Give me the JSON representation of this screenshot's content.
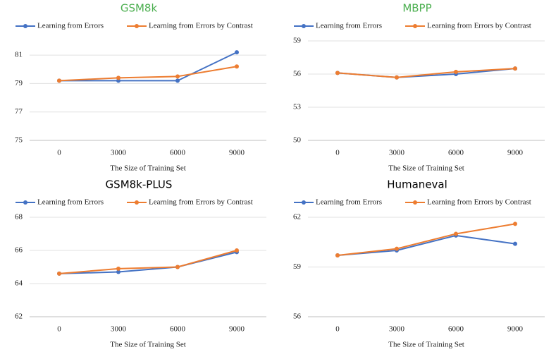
{
  "chart_data": [
    {
      "type": "line",
      "title": "GSM8k",
      "title_color": "#4caf50",
      "x_label": "The Size of Training Set",
      "categories": [
        "0",
        "3000",
        "6000",
        "9000"
      ],
      "series": [
        {
          "name": "Learning from Errors",
          "color": "#4472c4",
          "values": [
            79.2,
            79.2,
            79.2,
            81.2
          ]
        },
        {
          "name": "Learning from Errors by Contrast",
          "color": "#ed7d31",
          "values": [
            79.2,
            79.4,
            79.5,
            80.2
          ]
        }
      ],
      "ylim": [
        75,
        82
      ],
      "yticks": [
        75,
        77,
        79,
        81
      ],
      "grid": true
    },
    {
      "type": "line",
      "title": "MBPP",
      "title_color": "#4caf50",
      "x_label": "The Size of Training Set",
      "categories": [
        "0",
        "3000",
        "6000",
        "9000"
      ],
      "series": [
        {
          "name": "Learning from Errors",
          "color": "#4472c4",
          "values": [
            56.1,
            55.7,
            56.0,
            56.5
          ]
        },
        {
          "name": "Learning from Errors by Contrast",
          "color": "#ed7d31",
          "values": [
            56.1,
            55.7,
            56.2,
            56.5
          ]
        }
      ],
      "ylim": [
        50,
        59
      ],
      "yticks": [
        50,
        53,
        56,
        59
      ],
      "grid": true
    },
    {
      "type": "line",
      "title": "GSM8k-PLUS",
      "title_color": "#000000",
      "x_label": "The Size of Training Set",
      "categories": [
        "0",
        "3000",
        "6000",
        "9000"
      ],
      "series": [
        {
          "name": "Learning from Errors",
          "color": "#4472c4",
          "values": [
            64.6,
            64.7,
            65.0,
            65.9
          ]
        },
        {
          "name": "Learning from Errors by Contrast",
          "color": "#ed7d31",
          "values": [
            64.6,
            64.9,
            65.0,
            66.0
          ]
        }
      ],
      "ylim": [
        62,
        68
      ],
      "yticks": [
        62,
        64,
        66,
        68
      ],
      "grid": true
    },
    {
      "type": "line",
      "title": "Humaneval",
      "title_color": "#000000",
      "x_label": "The Size of Training Set",
      "categories": [
        "0",
        "3000",
        "6000",
        "9000"
      ],
      "series": [
        {
          "name": "Learning from Errors",
          "color": "#4472c4",
          "values": [
            59.7,
            60.0,
            60.9,
            60.4
          ]
        },
        {
          "name": "Learning from Errors by Contrast",
          "color": "#ed7d31",
          "values": [
            59.7,
            60.1,
            61.0,
            61.6
          ]
        }
      ],
      "ylim": [
        56,
        62
      ],
      "yticks": [
        56,
        59,
        62
      ],
      "grid": true
    }
  ]
}
